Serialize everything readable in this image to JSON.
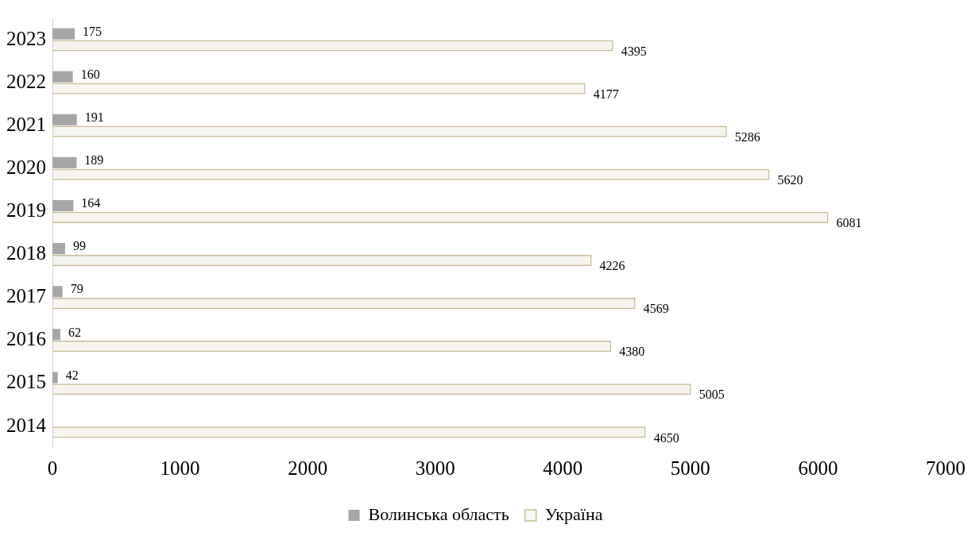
{
  "chart_data": {
    "type": "bar",
    "orientation": "horizontal",
    "categories": [
      "2023",
      "2022",
      "2021",
      "2020",
      "2019",
      "2018",
      "2017",
      "2016",
      "2015",
      "2014"
    ],
    "series": [
      {
        "name": "Волинська область",
        "color": "#a6a6a6",
        "values": [
          175,
          160,
          191,
          189,
          164,
          99,
          79,
          62,
          42,
          null
        ]
      },
      {
        "name": "Україна",
        "color": "#c8bc96",
        "values": [
          4395,
          4177,
          5286,
          5620,
          6081,
          4226,
          4569,
          4380,
          5005,
          4650
        ]
      }
    ],
    "xlim": [
      0,
      7000
    ],
    "xticks": [
      0,
      1000,
      2000,
      3000,
      4000,
      5000,
      6000,
      7000
    ],
    "grid": false,
    "legend": "bottom",
    "data_labels": true
  }
}
